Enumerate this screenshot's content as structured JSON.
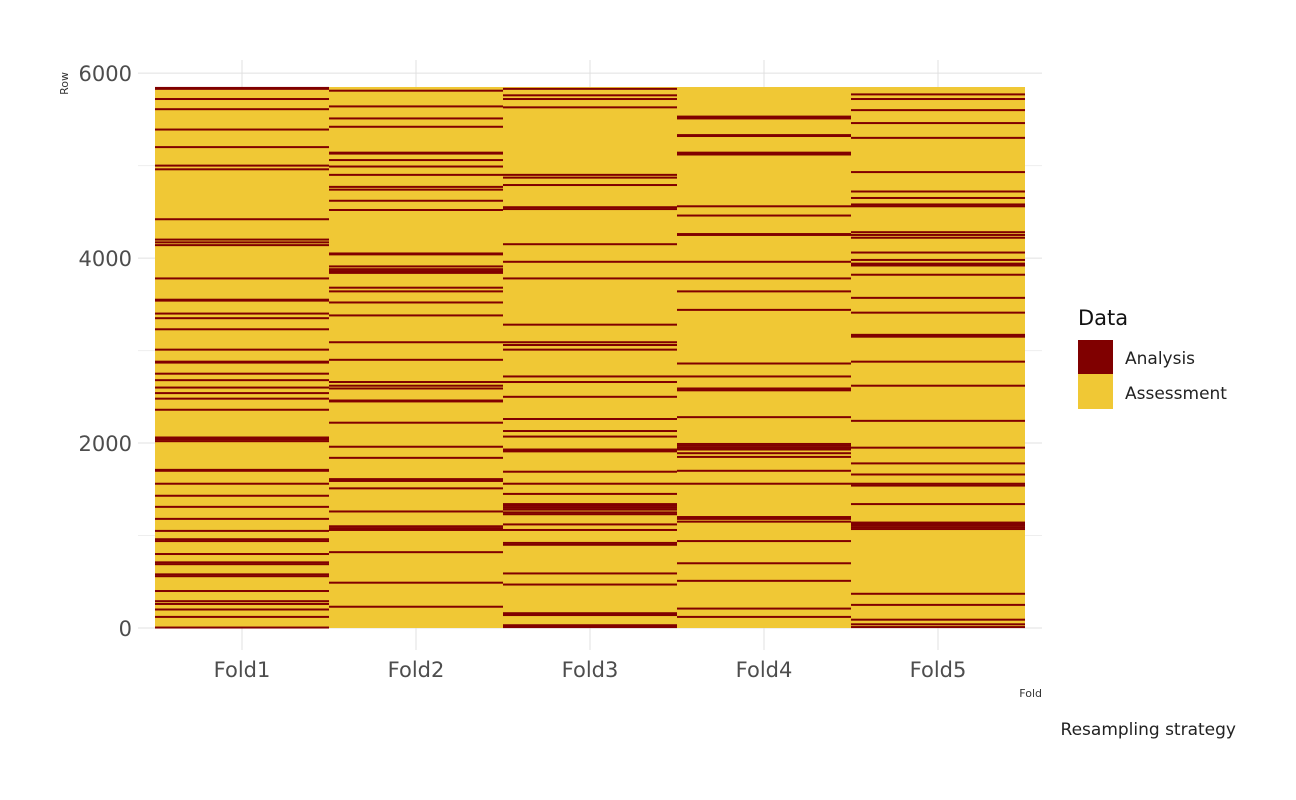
{
  "chart_data": {
    "type": "heatmap",
    "categories": [
      "Fold1",
      "Fold2",
      "Fold3",
      "Fold4",
      "Fold5"
    ],
    "xlabel": "Fold",
    "ylabel": "Row",
    "caption": "Resampling strategy",
    "ylim": [
      0,
      5850
    ],
    "y_ticks": [
      "0",
      "2000",
      "4000",
      "6000"
    ],
    "y_tick_values": [
      0,
      2000,
      4000,
      6000
    ],
    "grid": true,
    "legend": {
      "title": "Data",
      "position": "right",
      "entries": [
        {
          "label": "Analysis",
          "color": "#800000"
        },
        {
          "label": "Assessment",
          "color": "#F0C835"
        }
      ]
    },
    "assessment_color": "#F0C835",
    "analysis_color": "#800000",
    "analysis_rows": [
      [
        5840,
        5830,
        5720,
        5610,
        5390,
        5200,
        5000,
        4960,
        4420,
        4200,
        4170,
        4140,
        3780,
        3550,
        3540,
        3400,
        3350,
        3230,
        3010,
        2880,
        2870,
        2750,
        2680,
        2600,
        2540,
        2480,
        2360,
        2060,
        2040,
        2020,
        1710,
        1700,
        1560,
        1430,
        1310,
        1180,
        1050,
        960,
        940,
        800,
        710,
        690,
        580,
        560,
        400,
        290,
        260,
        200,
        120,
        5
      ],
      [
        5810,
        5640,
        5510,
        5420,
        5140,
        5130,
        5060,
        4990,
        4900,
        4770,
        4740,
        4620,
        4520,
        4050,
        4040,
        3910,
        3880,
        3860,
        3840,
        3680,
        3640,
        3520,
        3380,
        3090,
        2900,
        2660,
        2620,
        2590,
        2460,
        2450,
        2220,
        1960,
        1840,
        1610,
        1590,
        1510,
        1260,
        1100,
        1080,
        1060,
        820,
        490,
        230
      ],
      [
        5830,
        5760,
        5720,
        5630,
        4900,
        4870,
        4790,
        4550,
        4530,
        4150,
        3960,
        3780,
        3280,
        3090,
        3060,
        3010,
        2720,
        2660,
        2500,
        2260,
        2130,
        2070,
        1930,
        1910,
        1690,
        1560,
        1450,
        1340,
        1320,
        1300,
        1280,
        1250,
        1230,
        1120,
        1060,
        920,
        900,
        590,
        470,
        160,
        150,
        140,
        30,
        20,
        10
      ],
      [
        5530,
        5510,
        5330,
        5320,
        5140,
        5120,
        4560,
        4460,
        4260,
        4250,
        3960,
        3780,
        3640,
        3440,
        2860,
        2720,
        2590,
        2570,
        2280,
        1990,
        1970,
        1950,
        1930,
        1890,
        1850,
        1700,
        1560,
        1200,
        1180,
        1150,
        940,
        700,
        510,
        210,
        120
      ],
      [
        5770,
        5720,
        5600,
        5460,
        5300,
        4930,
        4720,
        4650,
        4580,
        4560,
        4280,
        4250,
        4220,
        4060,
        3980,
        3940,
        3920,
        3820,
        3570,
        3410,
        3170,
        3160,
        3150,
        2880,
        2620,
        2240,
        1950,
        1780,
        1660,
        1560,
        1540,
        1340,
        1140,
        1130,
        1110,
        1090,
        1070,
        370,
        250,
        90,
        40,
        10
      ]
    ]
  }
}
